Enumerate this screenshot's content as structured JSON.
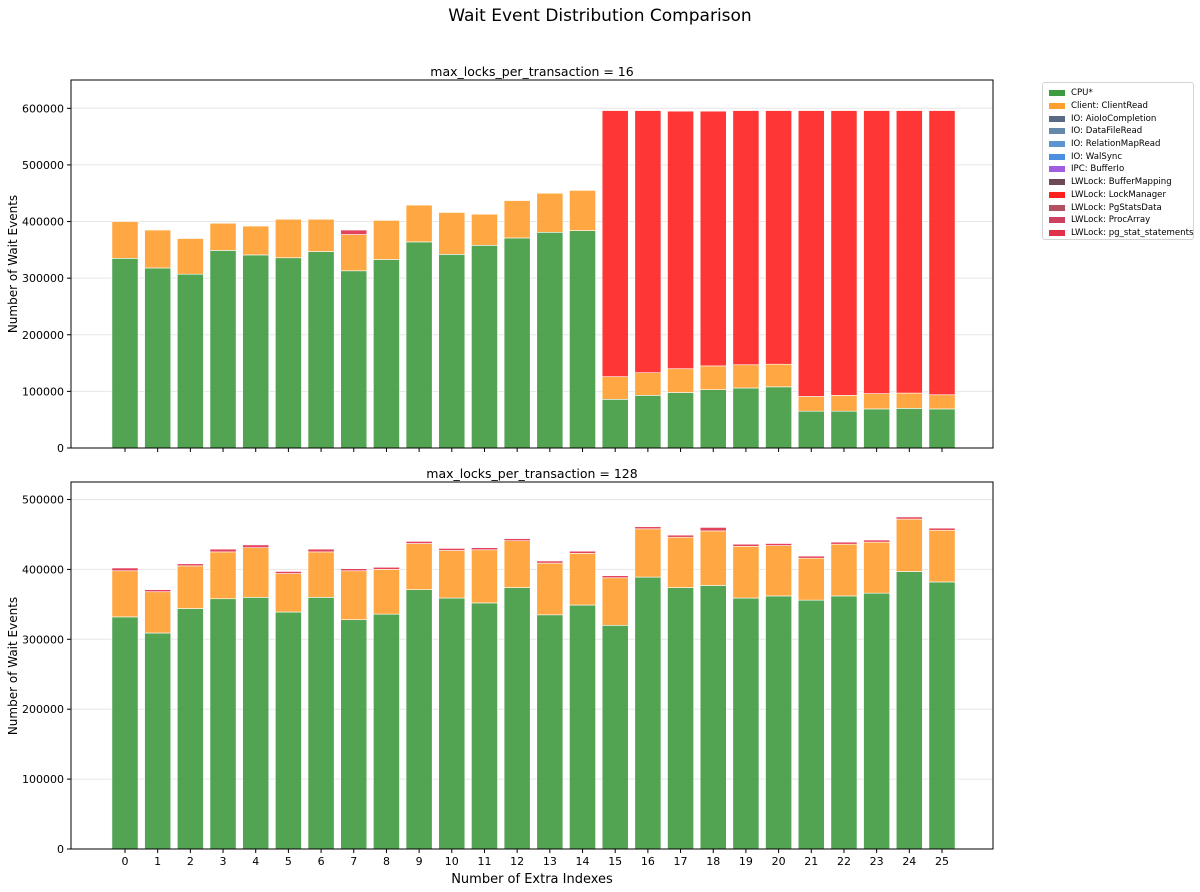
{
  "suptitle": "Wait Event Distribution Comparison",
  "legend": {
    "items": [
      {
        "label": "CPU*",
        "color": "#3f9a3f"
      },
      {
        "label": "Client: ClientRead",
        "color": "#ff9f2f"
      },
      {
        "label": "IO: AioIoCompletion",
        "color": "#5a6a85"
      },
      {
        "label": "IO: DataFileRead",
        "color": "#6688aa"
      },
      {
        "label": "IO: RelationMapRead",
        "color": "#5b95cc"
      },
      {
        "label": "IO: WalSync",
        "color": "#4a8fe0"
      },
      {
        "label": "IPC: BufferIo",
        "color": "#a15ce0"
      },
      {
        "label": "LWLock: BufferMapping",
        "color": "#6b4a55"
      },
      {
        "label": "LWLock: LockManager",
        "color": "#ff2020"
      },
      {
        "label": "LWLock: PgStatsData",
        "color": "#b05060"
      },
      {
        "label": "LWLock: ProcArray",
        "color": "#cc4060"
      },
      {
        "label": "LWLock: pg_stat_statements",
        "color": "#e0304a"
      }
    ]
  },
  "chart_data": [
    {
      "type": "bar",
      "stacked": true,
      "title": "max_locks_per_transaction = 16",
      "xlabel": "",
      "ylabel": "Number of Wait Events",
      "ylim": [
        0,
        650000
      ],
      "yticks": [
        0,
        100000,
        200000,
        300000,
        400000,
        500000,
        600000
      ],
      "categories": [
        "0",
        "1",
        "2",
        "3",
        "4",
        "5",
        "6",
        "7",
        "8",
        "9",
        "10",
        "11",
        "12",
        "13",
        "14",
        "15",
        "16",
        "17",
        "18",
        "19",
        "20",
        "21",
        "22",
        "23",
        "24",
        "25"
      ],
      "series": [
        {
          "name": "CPU*",
          "color": "#3f9a3f",
          "values": [
            335000,
            318000,
            307000,
            349000,
            341000,
            336000,
            347000,
            313000,
            333000,
            364000,
            342000,
            358000,
            371000,
            381000,
            384000,
            86000,
            93000,
            98000,
            103000,
            106000,
            108000,
            65000,
            65000,
            69000,
            70000,
            69000
          ]
        },
        {
          "name": "Client: ClientRead",
          "color": "#ff9f2f",
          "values": [
            65000,
            67000,
            63000,
            48000,
            51000,
            68000,
            57000,
            64000,
            69000,
            65000,
            74000,
            55000,
            66000,
            69000,
            71000,
            40000,
            40000,
            42000,
            42000,
            41000,
            40000,
            26000,
            28000,
            27000,
            27000,
            25000
          ]
        },
        {
          "name": "LWLock: LockManager",
          "color": "#ff2020",
          "values": [
            0,
            0,
            0,
            0,
            0,
            0,
            0,
            0,
            0,
            0,
            0,
            0,
            0,
            0,
            0,
            470000,
            463000,
            455000,
            450000,
            449000,
            448000,
            505000,
            503000,
            500000,
            499000,
            502000
          ]
        },
        {
          "name": "LWLock: pg_stat_statements",
          "color": "#e0304a",
          "values": [
            0,
            0,
            0,
            0,
            0,
            0,
            0,
            8000,
            0,
            0,
            0,
            0,
            0,
            0,
            0,
            0,
            0,
            0,
            0,
            0,
            0,
            0,
            0,
            0,
            0,
            0
          ]
        }
      ]
    },
    {
      "type": "bar",
      "stacked": true,
      "title": "max_locks_per_transaction = 128",
      "xlabel": "Number of Extra Indexes",
      "ylabel": "Number of Wait Events",
      "ylim": [
        0,
        525000
      ],
      "yticks": [
        0,
        100000,
        200000,
        300000,
        400000,
        500000
      ],
      "categories": [
        "0",
        "1",
        "2",
        "3",
        "4",
        "5",
        "6",
        "7",
        "8",
        "9",
        "10",
        "11",
        "12",
        "13",
        "14",
        "15",
        "16",
        "17",
        "18",
        "19",
        "20",
        "21",
        "22",
        "23",
        "24",
        "25"
      ],
      "series": [
        {
          "name": "CPU*",
          "color": "#3f9a3f",
          "values": [
            332000,
            309000,
            344000,
            358000,
            360000,
            339000,
            360000,
            328000,
            336000,
            371000,
            359000,
            352000,
            374000,
            335000,
            349000,
            320000,
            389000,
            374000,
            377000,
            359000,
            362000,
            356000,
            362000,
            366000,
            397000,
            382000
          ]
        },
        {
          "name": "Client: ClientRead",
          "color": "#ff9f2f",
          "values": [
            66000,
            59000,
            61000,
            67000,
            71000,
            55000,
            65000,
            70000,
            64000,
            66000,
            68000,
            76000,
            67000,
            74000,
            74000,
            68000,
            69000,
            72000,
            78000,
            74000,
            72000,
            60000,
            74000,
            73000,
            75000,
            74000
          ]
        },
        {
          "name": "IPC: BufferIo",
          "color": "#a15ce0",
          "values": [
            0,
            0,
            0,
            0,
            0,
            0,
            0,
            0,
            0,
            0,
            0,
            0,
            0,
            0,
            0,
            0,
            0,
            0,
            0,
            0,
            0,
            0,
            0,
            0,
            0,
            0
          ]
        },
        {
          "name": "LWLock: pg_stat_statements",
          "color": "#e0304a",
          "values": [
            4000,
            3000,
            3000,
            4000,
            4000,
            3000,
            4000,
            3000,
            3000,
            3000,
            3000,
            3000,
            3000,
            3000,
            3000,
            3000,
            3000,
            3000,
            5000,
            3000,
            3000,
            3000,
            3000,
            3000,
            3000,
            3000
          ]
        }
      ]
    }
  ]
}
